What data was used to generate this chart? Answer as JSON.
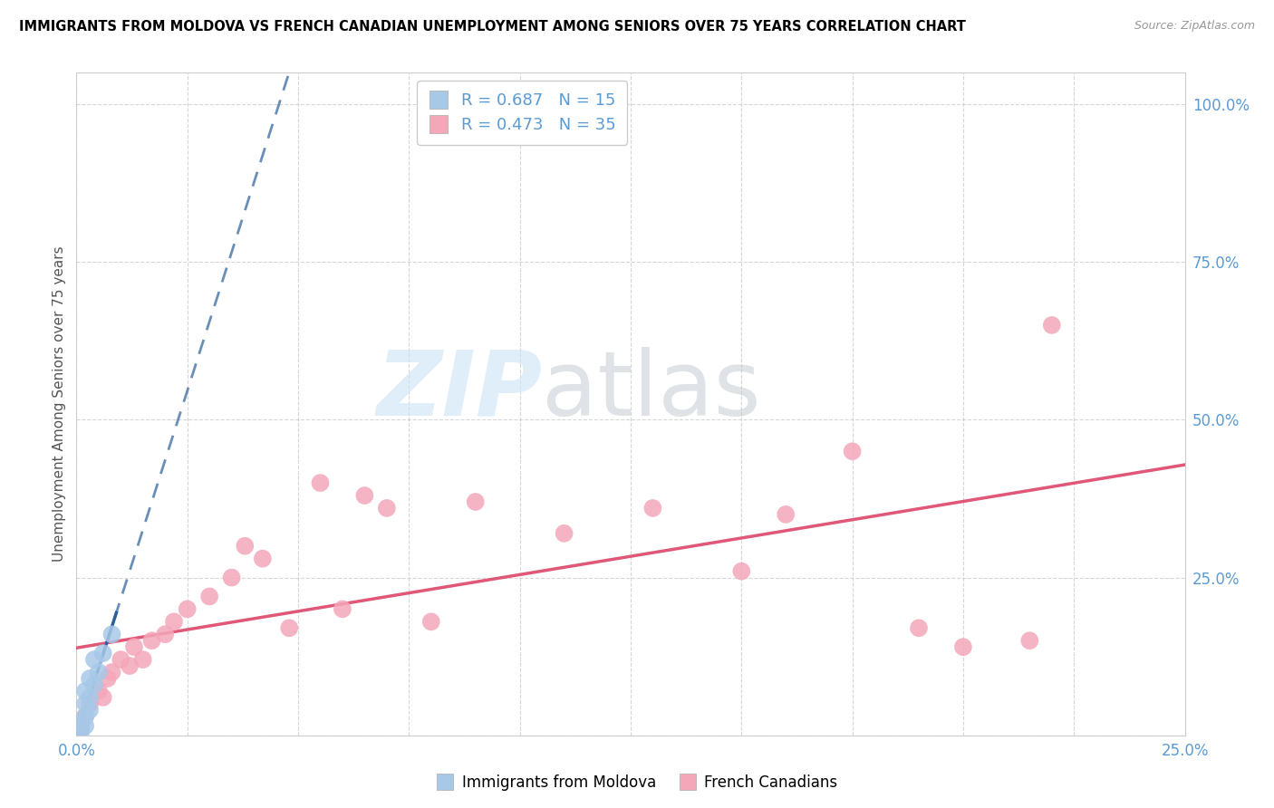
{
  "title": "IMMIGRANTS FROM MOLDOVA VS FRENCH CANADIAN UNEMPLOYMENT AMONG SENIORS OVER 75 YEARS CORRELATION CHART",
  "source": "Source: ZipAtlas.com",
  "ylabel": "Unemployment Among Seniors over 75 years",
  "xlim": [
    0.0,
    0.25
  ],
  "ylim": [
    0.0,
    1.05
  ],
  "moldova_color": "#a8c8e8",
  "moldova_edge": "#5b9bd5",
  "french_color": "#f4a7b9",
  "french_edge": "#e06080",
  "trendline_moldova_color": "#2a6099",
  "trendline_french_color": "#e05878",
  "R_moldova": 0.687,
  "N_moldova": 15,
  "R_french": 0.473,
  "N_french": 35,
  "label_color": "#5b9bd5",
  "moldova_x": [
    0.001,
    0.001,
    0.001,
    0.002,
    0.002,
    0.002,
    0.002,
    0.003,
    0.003,
    0.003,
    0.004,
    0.004,
    0.005,
    0.006,
    0.008
  ],
  "moldova_y": [
    0.005,
    0.01,
    0.02,
    0.015,
    0.03,
    0.05,
    0.07,
    0.04,
    0.06,
    0.09,
    0.08,
    0.12,
    0.1,
    0.13,
    0.16
  ],
  "french_x": [
    0.001,
    0.002,
    0.003,
    0.005,
    0.006,
    0.007,
    0.008,
    0.01,
    0.012,
    0.013,
    0.015,
    0.017,
    0.02,
    0.022,
    0.025,
    0.03,
    0.035,
    0.038,
    0.042,
    0.048,
    0.055,
    0.06,
    0.065,
    0.07,
    0.08,
    0.09,
    0.11,
    0.13,
    0.15,
    0.16,
    0.175,
    0.19,
    0.2,
    0.215,
    0.22
  ],
  "french_y": [
    0.01,
    0.03,
    0.05,
    0.07,
    0.06,
    0.09,
    0.1,
    0.12,
    0.11,
    0.14,
    0.12,
    0.15,
    0.16,
    0.18,
    0.2,
    0.22,
    0.25,
    0.3,
    0.28,
    0.17,
    0.4,
    0.2,
    0.38,
    0.36,
    0.18,
    0.37,
    0.32,
    0.36,
    0.26,
    0.35,
    0.45,
    0.17,
    0.14,
    0.15,
    0.65
  ]
}
